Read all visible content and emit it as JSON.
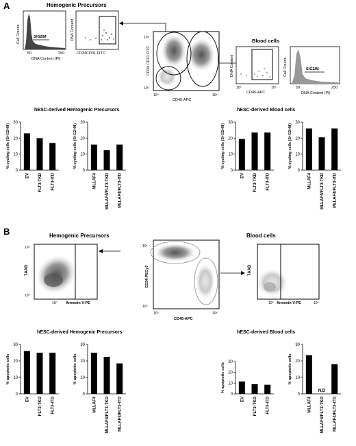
{
  "panel_a": {
    "letter": "A",
    "hemogenic_title": "Hemogenic Precursors",
    "blood_title": "Blood cells",
    "histogram_hemo": {
      "ylabel": "Cell Counts",
      "xlabel": "DNA Content (PI)",
      "gate": "S/G2/M",
      "ticks": [
        "50",
        "250"
      ]
    },
    "dot_hemo": {
      "ylabel": "DNA Content",
      "xlabel": "CD34CD31 FITC"
    },
    "center_plot": {
      "ylabel": "CD34 CD31 FITC",
      "xlabel": "CD45-APC",
      "tick_hi": "10⁵",
      "tick_lo": "10⁰"
    },
    "dot_blood": {
      "ylabel": "DNA Content",
      "xlabel": "CD45-APC",
      "tick_lo": "10⁰",
      "tick_hi": "10⁵"
    },
    "histogram_blood": {
      "ylabel": "Cell Counts",
      "xlabel": "DNA Content (PI)",
      "gate": "S/G2/M",
      "ticks": [
        "50",
        "250"
      ]
    },
    "hemo_section_title": "hESC-derived Hemogenic Precursors",
    "blood_section_title": "hESC-derived Blood cells"
  },
  "panel_b": {
    "letter": "B",
    "hemogenic_title": "Hemogenic Precursors",
    "blood_title": "Blood cells",
    "annexin_hemo": {
      "ylabel": "7AAD",
      "xlabel": "Annexin V-PE",
      "tick_hi": "10⁵",
      "tick_lo": "10⁰",
      "tick_x": "10⁰"
    },
    "center_plot": {
      "ylabel": "CD34-PECy7",
      "xlabel": "CD45-APC",
      "tick_hi": "10⁵",
      "tick_lo": "10⁰",
      "tick_x_lo": "10⁰",
      "tick_x_hi": "10⁵"
    },
    "annexin_blood": {
      "ylabel": "7AAD",
      "xlabel": "Annexin V-PE",
      "tick_x_lo": "10⁰",
      "tick_x_hi": "10⁶"
    },
    "hemo_section_title": "hESC-derived Hemogenic Precursors",
    "blood_section_title": "hESC-derived Blood cells"
  },
  "chart_data": [
    {
      "id": "a1",
      "type": "bar",
      "categories": [
        "EV",
        "FLT3-TKD",
        "FLT3-ITD"
      ],
      "values": [
        23,
        20,
        17
      ],
      "ylabel": "% cycling cells (S+G2+M)",
      "ylim": [
        0,
        30
      ],
      "yticks": [
        0,
        10,
        20,
        30
      ]
    },
    {
      "id": "a2",
      "type": "bar",
      "categories": [
        "MLLAF4",
        "MLLAF4/FLT3-TKD",
        "MLLAF4/FLT3-ITD"
      ],
      "values": [
        16,
        12.5,
        16
      ],
      "ylabel": "% cycling cells (S+G2+M)",
      "ylim": [
        0,
        30
      ],
      "yticks": [
        0,
        10,
        20,
        30
      ]
    },
    {
      "id": "a3",
      "type": "bar",
      "categories": [
        "EV",
        "FLT3-TKD",
        "FLT3-ITD"
      ],
      "values": [
        19.5,
        23.5,
        23.5
      ],
      "ylabel": "% cycling cells (S+G2+M)",
      "ylim": [
        0,
        30
      ],
      "yticks": [
        0,
        10,
        20,
        30
      ]
    },
    {
      "id": "a4",
      "type": "bar",
      "categories": [
        "MLLAF4",
        "MLLAF4/FLT3-TKD",
        "MLLAF4/FLT3-ITD"
      ],
      "values": [
        26,
        20.5,
        26
      ],
      "ylabel": "% cycling cells (S+G2+M)",
      "ylim": [
        0,
        30
      ],
      "yticks": [
        0,
        10,
        20,
        30
      ]
    },
    {
      "id": "b1",
      "type": "bar",
      "categories": [
        "EV",
        "FLT3-TKD",
        "FLT3-ITD"
      ],
      "values": [
        26,
        25,
        25
      ],
      "ylabel": "% apoptotic cells",
      "ylim": [
        0,
        30
      ],
      "yticks": [
        0,
        10,
        20,
        30
      ]
    },
    {
      "id": "b2",
      "type": "bar",
      "categories": [
        "MLLAF4",
        "MLLAF4/FLT3-TKD",
        "MLLAF4/FLT3-ITD"
      ],
      "values": [
        25,
        22.5,
        18.5
      ],
      "ylabel": "% apoptotic cells",
      "ylim": [
        0,
        30
      ],
      "yticks": [
        0,
        10,
        20,
        30
      ]
    },
    {
      "id": "b3",
      "type": "bar",
      "categories": [
        "EV",
        "FLT3-TKD",
        "FLT3-ITD"
      ],
      "values": [
        11.5,
        9,
        8.5
      ],
      "ylabel": "% apoptotic cells",
      "ylim": [
        0,
        30
      ],
      "yticks": [
        0,
        10,
        20,
        30
      ]
    },
    {
      "id": "b4",
      "type": "bar",
      "categories": [
        "MLLAF4",
        "MLLAF4/FLT3-TKD",
        "MLLAF4/FLT3-ITD"
      ],
      "values": [
        23.5,
        null,
        18
      ],
      "ylabel": "% apoptotic cells",
      "ylim": [
        0,
        30
      ],
      "yticks": [
        0,
        10,
        20,
        30
      ],
      "annotations": [
        {
          "category": "MLLAF4/FLT3-TKD",
          "text": "N.D"
        }
      ]
    }
  ]
}
